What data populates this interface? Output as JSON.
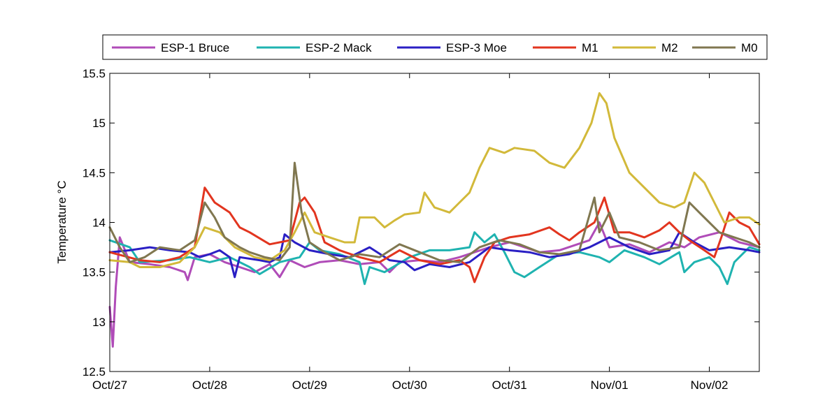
{
  "chart_data": {
    "type": "line",
    "title": "",
    "xlabel": "",
    "ylabel": "Temperature °C",
    "x_tick_labels": [
      "Oct/27",
      "Oct/28",
      "Oct/29",
      "Oct/30",
      "Oct/31",
      "Nov/01",
      "Nov/02"
    ],
    "x_range": [
      "Oct/27 00:00",
      "Nov/02 12:00"
    ],
    "ylim": [
      12.5,
      15.5
    ],
    "y_ticks": [
      "12.5",
      "13",
      "13.5",
      "14",
      "14.5",
      "15",
      "15.5"
    ],
    "grid": false,
    "legend_position": "top",
    "series": [
      {
        "name": "ESP-1 Bruce",
        "color": "#b04cb8",
        "points": [
          [
            0,
            13.15
          ],
          [
            0.03,
            12.75
          ],
          [
            0.06,
            13.35
          ],
          [
            0.1,
            13.85
          ],
          [
            0.2,
            13.6
          ],
          [
            0.4,
            13.58
          ],
          [
            0.6,
            13.55
          ],
          [
            0.75,
            13.5
          ],
          [
            0.78,
            13.42
          ],
          [
            0.85,
            13.65
          ],
          [
            1.0,
            13.68
          ],
          [
            1.15,
            13.6
          ],
          [
            1.3,
            13.55
          ],
          [
            1.45,
            13.5
          ],
          [
            1.6,
            13.58
          ],
          [
            1.7,
            13.45
          ],
          [
            1.8,
            13.62
          ],
          [
            1.95,
            13.55
          ],
          [
            2.1,
            13.6
          ],
          [
            2.3,
            13.62
          ],
          [
            2.5,
            13.58
          ],
          [
            2.7,
            13.6
          ],
          [
            2.8,
            13.5
          ],
          [
            2.9,
            13.6
          ],
          [
            3.1,
            13.62
          ],
          [
            3.3,
            13.6
          ],
          [
            3.5,
            13.65
          ],
          [
            3.8,
            13.75
          ],
          [
            4.0,
            13.8
          ],
          [
            4.3,
            13.7
          ],
          [
            4.5,
            13.72
          ],
          [
            4.8,
            13.82
          ],
          [
            4.9,
            14.0
          ],
          [
            5.0,
            13.75
          ],
          [
            5.2,
            13.78
          ],
          [
            5.4,
            13.7
          ],
          [
            5.6,
            13.8
          ],
          [
            5.75,
            13.75
          ],
          [
            5.9,
            13.85
          ],
          [
            6.1,
            13.9
          ],
          [
            6.3,
            13.8
          ],
          [
            6.5,
            13.75
          ]
        ]
      },
      {
        "name": "ESP-2 Mack",
        "color": "#1fb3b0",
        "points": [
          [
            0,
            13.82
          ],
          [
            0.2,
            13.75
          ],
          [
            0.3,
            13.6
          ],
          [
            0.6,
            13.62
          ],
          [
            0.8,
            13.65
          ],
          [
            1.0,
            13.6
          ],
          [
            1.2,
            13.65
          ],
          [
            1.4,
            13.55
          ],
          [
            1.5,
            13.48
          ],
          [
            1.7,
            13.6
          ],
          [
            1.9,
            13.65
          ],
          [
            2.0,
            13.8
          ],
          [
            2.1,
            13.72
          ],
          [
            2.3,
            13.68
          ],
          [
            2.5,
            13.6
          ],
          [
            2.55,
            13.38
          ],
          [
            2.6,
            13.55
          ],
          [
            2.75,
            13.5
          ],
          [
            3.0,
            13.65
          ],
          [
            3.2,
            13.72
          ],
          [
            3.4,
            13.72
          ],
          [
            3.6,
            13.75
          ],
          [
            3.65,
            13.9
          ],
          [
            3.75,
            13.8
          ],
          [
            3.85,
            13.88
          ],
          [
            3.95,
            13.7
          ],
          [
            4.05,
            13.5
          ],
          [
            4.15,
            13.45
          ],
          [
            4.3,
            13.55
          ],
          [
            4.5,
            13.68
          ],
          [
            4.7,
            13.7
          ],
          [
            4.9,
            13.65
          ],
          [
            5.0,
            13.6
          ],
          [
            5.15,
            13.72
          ],
          [
            5.35,
            13.65
          ],
          [
            5.5,
            13.58
          ],
          [
            5.7,
            13.7
          ],
          [
            5.75,
            13.5
          ],
          [
            5.85,
            13.6
          ],
          [
            6.0,
            13.65
          ],
          [
            6.1,
            13.55
          ],
          [
            6.18,
            13.38
          ],
          [
            6.25,
            13.6
          ],
          [
            6.4,
            13.75
          ],
          [
            6.5,
            13.72
          ]
        ]
      },
      {
        "name": "ESP-3 Moe",
        "color": "#2a1fc4",
        "points": [
          [
            0,
            13.7
          ],
          [
            0.2,
            13.72
          ],
          [
            0.4,
            13.75
          ],
          [
            0.6,
            13.72
          ],
          [
            0.8,
            13.7
          ],
          [
            0.9,
            13.65
          ],
          [
            1.0,
            13.68
          ],
          [
            1.1,
            13.72
          ],
          [
            1.2,
            13.65
          ],
          [
            1.25,
            13.45
          ],
          [
            1.3,
            13.65
          ],
          [
            1.5,
            13.62
          ],
          [
            1.6,
            13.6
          ],
          [
            1.7,
            13.65
          ],
          [
            1.75,
            13.88
          ],
          [
            1.85,
            13.8
          ],
          [
            2.0,
            13.72
          ],
          [
            2.2,
            13.68
          ],
          [
            2.4,
            13.65
          ],
          [
            2.6,
            13.75
          ],
          [
            2.8,
            13.62
          ],
          [
            2.95,
            13.6
          ],
          [
            3.05,
            13.52
          ],
          [
            3.2,
            13.58
          ],
          [
            3.4,
            13.55
          ],
          [
            3.6,
            13.6
          ],
          [
            3.8,
            13.75
          ],
          [
            4.0,
            13.72
          ],
          [
            4.2,
            13.7
          ],
          [
            4.4,
            13.65
          ],
          [
            4.6,
            13.68
          ],
          [
            4.8,
            13.75
          ],
          [
            5.0,
            13.85
          ],
          [
            5.2,
            13.75
          ],
          [
            5.4,
            13.68
          ],
          [
            5.6,
            13.72
          ],
          [
            5.7,
            13.9
          ],
          [
            5.85,
            13.8
          ],
          [
            6.0,
            13.72
          ],
          [
            6.2,
            13.75
          ],
          [
            6.4,
            13.72
          ],
          [
            6.5,
            13.7
          ]
        ]
      },
      {
        "name": "M1",
        "color": "#e2351f",
        "points": [
          [
            0,
            13.7
          ],
          [
            0.3,
            13.62
          ],
          [
            0.5,
            13.6
          ],
          [
            0.7,
            13.65
          ],
          [
            0.85,
            13.75
          ],
          [
            0.95,
            14.35
          ],
          [
            1.05,
            14.2
          ],
          [
            1.2,
            14.1
          ],
          [
            1.3,
            13.95
          ],
          [
            1.4,
            13.9
          ],
          [
            1.6,
            13.78
          ],
          [
            1.8,
            13.82
          ],
          [
            1.9,
            14.2
          ],
          [
            1.95,
            14.25
          ],
          [
            2.05,
            14.1
          ],
          [
            2.15,
            13.8
          ],
          [
            2.3,
            13.72
          ],
          [
            2.5,
            13.65
          ],
          [
            2.7,
            13.6
          ],
          [
            2.9,
            13.72
          ],
          [
            3.1,
            13.62
          ],
          [
            3.3,
            13.58
          ],
          [
            3.5,
            13.62
          ],
          [
            3.6,
            13.55
          ],
          [
            3.65,
            13.4
          ],
          [
            3.75,
            13.65
          ],
          [
            3.85,
            13.8
          ],
          [
            4.0,
            13.85
          ],
          [
            4.2,
            13.88
          ],
          [
            4.4,
            13.95
          ],
          [
            4.5,
            13.88
          ],
          [
            4.6,
            13.82
          ],
          [
            4.7,
            13.9
          ],
          [
            4.85,
            14.0
          ],
          [
            4.95,
            14.25
          ],
          [
            5.05,
            13.9
          ],
          [
            5.2,
            13.9
          ],
          [
            5.35,
            13.85
          ],
          [
            5.5,
            13.92
          ],
          [
            5.6,
            14.0
          ],
          [
            5.7,
            13.9
          ],
          [
            5.8,
            13.82
          ],
          [
            5.95,
            13.72
          ],
          [
            6.05,
            13.65
          ],
          [
            6.12,
            13.85
          ],
          [
            6.2,
            14.1
          ],
          [
            6.3,
            14.0
          ],
          [
            6.4,
            13.95
          ],
          [
            6.5,
            13.78
          ]
        ]
      },
      {
        "name": "M2",
        "color": "#d2b93a",
        "points": [
          [
            0,
            13.62
          ],
          [
            0.2,
            13.6
          ],
          [
            0.3,
            13.55
          ],
          [
            0.5,
            13.55
          ],
          [
            0.7,
            13.6
          ],
          [
            0.85,
            13.75
          ],
          [
            0.95,
            13.95
          ],
          [
            1.1,
            13.9
          ],
          [
            1.25,
            13.75
          ],
          [
            1.45,
            13.65
          ],
          [
            1.6,
            13.62
          ],
          [
            1.75,
            13.72
          ],
          [
            1.85,
            13.9
          ],
          [
            1.95,
            14.1
          ],
          [
            2.05,
            13.9
          ],
          [
            2.2,
            13.85
          ],
          [
            2.35,
            13.8
          ],
          [
            2.45,
            13.8
          ],
          [
            2.5,
            14.05
          ],
          [
            2.65,
            14.05
          ],
          [
            2.75,
            13.95
          ],
          [
            2.85,
            14.02
          ],
          [
            2.95,
            14.08
          ],
          [
            3.1,
            14.1
          ],
          [
            3.15,
            14.3
          ],
          [
            3.25,
            14.15
          ],
          [
            3.4,
            14.1
          ],
          [
            3.5,
            14.2
          ],
          [
            3.6,
            14.3
          ],
          [
            3.7,
            14.55
          ],
          [
            3.8,
            14.75
          ],
          [
            3.95,
            14.7
          ],
          [
            4.05,
            14.75
          ],
          [
            4.25,
            14.72
          ],
          [
            4.4,
            14.6
          ],
          [
            4.55,
            14.55
          ],
          [
            4.7,
            14.75
          ],
          [
            4.82,
            15.0
          ],
          [
            4.9,
            15.3
          ],
          [
            4.97,
            15.2
          ],
          [
            5.05,
            14.85
          ],
          [
            5.2,
            14.5
          ],
          [
            5.3,
            14.4
          ],
          [
            5.4,
            14.3
          ],
          [
            5.5,
            14.2
          ],
          [
            5.65,
            14.15
          ],
          [
            5.75,
            14.2
          ],
          [
            5.85,
            14.5
          ],
          [
            5.95,
            14.4
          ],
          [
            6.05,
            14.2
          ],
          [
            6.15,
            14.0
          ],
          [
            6.3,
            14.05
          ],
          [
            6.4,
            14.05
          ],
          [
            6.5,
            13.98
          ]
        ]
      },
      {
        "name": "M0",
        "color": "#807750",
        "points": [
          [
            0,
            13.95
          ],
          [
            0.1,
            13.75
          ],
          [
            0.2,
            13.6
          ],
          [
            0.35,
            13.65
          ],
          [
            0.5,
            13.75
          ],
          [
            0.7,
            13.72
          ],
          [
            0.85,
            13.82
          ],
          [
            0.95,
            14.2
          ],
          [
            1.05,
            14.05
          ],
          [
            1.15,
            13.85
          ],
          [
            1.3,
            13.75
          ],
          [
            1.4,
            13.7
          ],
          [
            1.55,
            13.65
          ],
          [
            1.7,
            13.62
          ],
          [
            1.8,
            13.75
          ],
          [
            1.85,
            14.6
          ],
          [
            1.92,
            14.1
          ],
          [
            2.0,
            13.8
          ],
          [
            2.15,
            13.7
          ],
          [
            2.3,
            13.62
          ],
          [
            2.5,
            13.68
          ],
          [
            2.7,
            13.65
          ],
          [
            2.9,
            13.78
          ],
          [
            3.1,
            13.7
          ],
          [
            3.3,
            13.62
          ],
          [
            3.5,
            13.6
          ],
          [
            3.7,
            13.75
          ],
          [
            3.9,
            13.82
          ],
          [
            4.1,
            13.78
          ],
          [
            4.3,
            13.7
          ],
          [
            4.5,
            13.68
          ],
          [
            4.7,
            13.72
          ],
          [
            4.85,
            14.25
          ],
          [
            4.9,
            13.9
          ],
          [
            5.0,
            14.1
          ],
          [
            5.1,
            13.85
          ],
          [
            5.3,
            13.8
          ],
          [
            5.5,
            13.72
          ],
          [
            5.7,
            13.75
          ],
          [
            5.8,
            14.2
          ],
          [
            5.9,
            14.1
          ],
          [
            6.0,
            14.0
          ],
          [
            6.1,
            13.9
          ],
          [
            6.25,
            13.85
          ],
          [
            6.4,
            13.8
          ],
          [
            6.5,
            13.75
          ]
        ]
      }
    ]
  }
}
